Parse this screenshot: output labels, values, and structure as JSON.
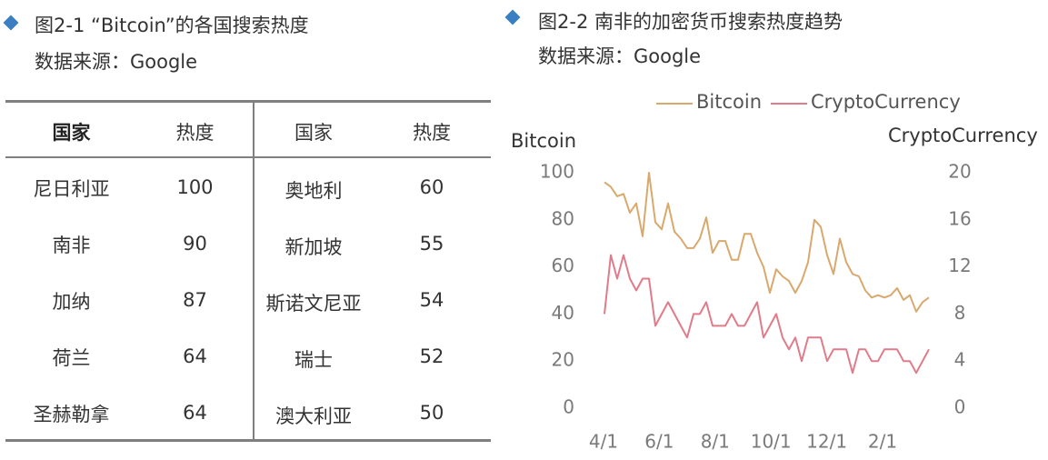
{
  "left": {
    "title": "图2-1 “Bitcoin”的各国搜索热度",
    "source": "数据来源：Google",
    "headers": [
      "国家",
      "热度",
      "国家",
      "热度"
    ],
    "rows": [
      {
        "c1": "尼日利亚",
        "v1": "100",
        "c2": "奥地利",
        "v2": "60"
      },
      {
        "c1": "南非",
        "v1": "90",
        "c2": "新加坡",
        "v2": "55"
      },
      {
        "c1": "加纳",
        "v1": "87",
        "c2": "斯诺文尼亚",
        "v2": "54"
      },
      {
        "c1": "荷兰",
        "v1": "64",
        "c2": "瑞士",
        "v2": "52"
      },
      {
        "c1": "圣赫勒拿",
        "v1": "64",
        "c2": "澳大利亚",
        "v2": "50"
      }
    ]
  },
  "right": {
    "title": "图2-2 南非的加密货币搜索热度趋势",
    "source": "数据来源：Google"
  },
  "colors": {
    "marker": "#3a7fc2",
    "bitcoin": "#d9a86c",
    "crypto": "#e07b8a",
    "rule": "#7f7f7f"
  },
  "icons": {
    "section_marker": "blue-diamond-icon"
  },
  "chart_data": {
    "type": "line",
    "legend": [
      "Bitcoin",
      "CryptoCurrency"
    ],
    "legend_position": "top",
    "left_axis_title": "Bitcoin",
    "right_axis_title": "CryptoCurrency",
    "left_ticks": [
      "0",
      "20",
      "40",
      "60",
      "80",
      "100"
    ],
    "right_ticks": [
      "0",
      "4",
      "8",
      "12",
      "16",
      "20"
    ],
    "ylim_left": [
      0,
      100
    ],
    "ylim_right": [
      0,
      20
    ],
    "x_tick_labels": [
      "4/1",
      "6/1",
      "8/1",
      "10/1",
      "12/1",
      "2/1"
    ],
    "grid": false,
    "series": [
      {
        "name": "Bitcoin",
        "axis": "left",
        "values": [
          96,
          94,
          90,
          91,
          83,
          87,
          73,
          100,
          79,
          76,
          87,
          75,
          72,
          68,
          68,
          72,
          81,
          66,
          71,
          71,
          63,
          63,
          74,
          74,
          66,
          60,
          49,
          59,
          56,
          54,
          49,
          54,
          62,
          80,
          77,
          65,
          57,
          72,
          62,
          57,
          56,
          50,
          47,
          48,
          47,
          48,
          51,
          46,
          48,
          41,
          45,
          47
        ]
      },
      {
        "name": "CryptoCurrency",
        "axis": "right",
        "values": [
          8,
          13,
          11,
          13,
          11,
          10,
          11,
          11,
          7,
          8,
          9,
          8,
          7,
          6,
          8,
          8,
          9,
          7,
          7,
          7,
          8,
          7,
          7,
          8,
          9,
          6,
          7,
          8,
          6,
          5,
          6,
          4,
          6,
          6,
          6,
          4,
          5,
          5,
          5,
          3,
          5,
          5,
          4,
          4,
          5,
          5,
          5,
          4,
          4,
          3,
          4,
          5
        ]
      }
    ]
  }
}
